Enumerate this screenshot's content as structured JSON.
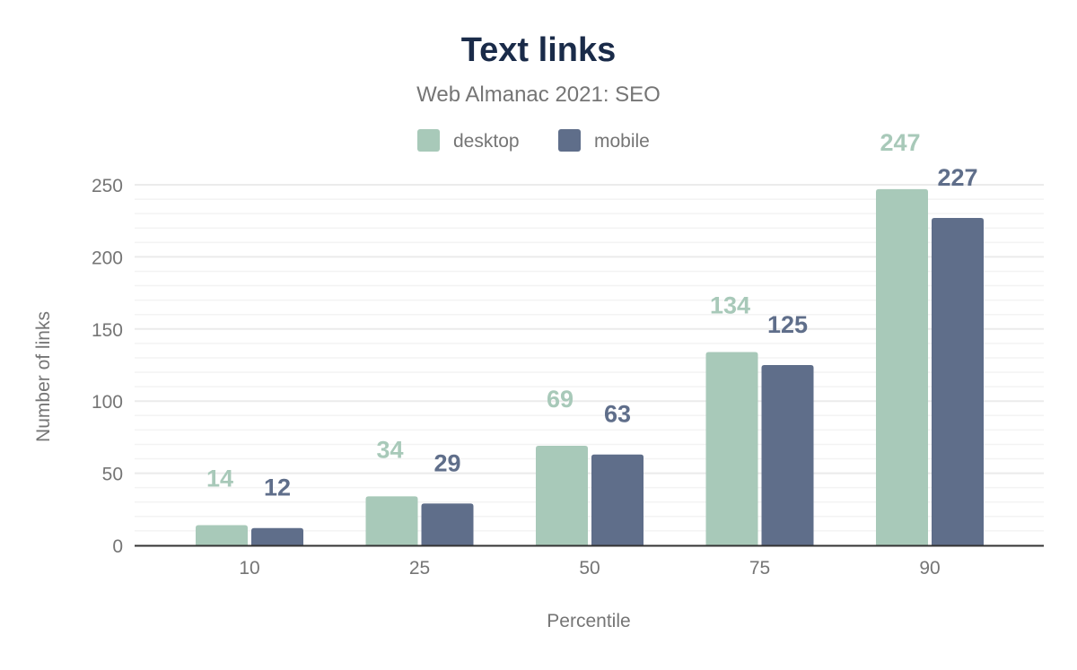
{
  "chart_data": {
    "type": "bar",
    "title": "Text links",
    "subtitle": "Web Almanac 2021: SEO",
    "xlabel": "Percentile",
    "ylabel": "Number of links",
    "categories": [
      "10",
      "25",
      "50",
      "75",
      "90"
    ],
    "series": [
      {
        "name": "desktop",
        "values": [
          14,
          34,
          69,
          134,
          247
        ],
        "color": "#a8c9b9"
      },
      {
        "name": "mobile",
        "values": [
          12,
          29,
          63,
          125,
          227
        ],
        "color": "#5f6e8a"
      }
    ],
    "ylim": [
      0,
      250
    ],
    "yticks": [
      0,
      50,
      100,
      150,
      200,
      250
    ],
    "minor_grid_step": 10,
    "grid": true,
    "legend": "top-center",
    "data_labels": true
  }
}
